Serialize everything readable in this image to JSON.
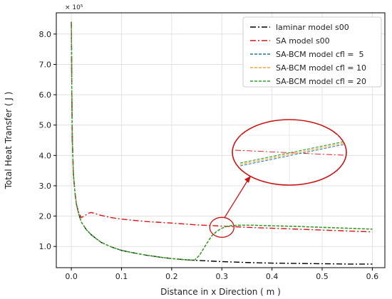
{
  "chart_data": {
    "type": "line",
    "xlabel": "Distance in x Direction ( m )",
    "ylabel": "Total Heat Transfer ( J )",
    "y_scale_label": "× 10⁵",
    "xlim": [
      -0.03,
      0.625
    ],
    "ylim": [
      0.3,
      8.7
    ],
    "xticks": [
      0.0,
      0.1,
      0.2,
      0.3,
      0.4,
      0.5,
      0.6
    ],
    "xtick_labels": [
      "0.0",
      "0.1",
      "0.2",
      "0.3",
      "0.4",
      "0.5",
      "0.6"
    ],
    "yticks": [
      1.0,
      2.0,
      3.0,
      4.0,
      5.0,
      6.0,
      7.0,
      8.0
    ],
    "ytick_labels": [
      "1.0",
      "2.0",
      "3.0",
      "4.0",
      "5.0",
      "6.0",
      "7.0",
      "8.0"
    ],
    "grid": true,
    "legend_position": "top-right",
    "series": [
      {
        "name": "laminar model s00",
        "color": "#000000",
        "dash": "dashdot",
        "x": [
          0.0,
          0.0005,
          0.001,
          0.002,
          0.004,
          0.007,
          0.01,
          0.015,
          0.02,
          0.03,
          0.04,
          0.05,
          0.06,
          0.08,
          0.1,
          0.12,
          0.15,
          0.18,
          0.2,
          0.22,
          0.25,
          0.3,
          0.35,
          0.4,
          0.45,
          0.5,
          0.55,
          0.6
        ],
        "y": [
          8.4,
          7.2,
          6.0,
          4.5,
          3.4,
          2.8,
          2.4,
          2.05,
          1.8,
          1.55,
          1.38,
          1.25,
          1.13,
          0.98,
          0.87,
          0.8,
          0.71,
          0.64,
          0.6,
          0.57,
          0.54,
          0.5,
          0.47,
          0.45,
          0.44,
          0.43,
          0.42,
          0.42
        ]
      },
      {
        "name": "SA model s00",
        "color": "#dd1111",
        "dash": "dashdot",
        "x": [
          0.0,
          0.0005,
          0.001,
          0.002,
          0.004,
          0.007,
          0.01,
          0.015,
          0.02,
          0.025,
          0.03,
          0.035,
          0.04,
          0.05,
          0.06,
          0.08,
          0.1,
          0.15,
          0.2,
          0.25,
          0.3,
          0.35,
          0.4,
          0.45,
          0.5,
          0.55,
          0.6
        ],
        "y": [
          8.4,
          7.2,
          6.0,
          4.5,
          3.4,
          2.8,
          2.4,
          2.1,
          1.95,
          2.0,
          2.05,
          2.1,
          2.12,
          2.07,
          2.02,
          1.95,
          1.9,
          1.82,
          1.77,
          1.71,
          1.67,
          1.63,
          1.6,
          1.57,
          1.54,
          1.51,
          1.48
        ]
      },
      {
        "name": "SA-BCM model cfl =  5",
        "color": "#1f77b4",
        "dash": "dashed",
        "x": [
          0.0,
          0.0005,
          0.001,
          0.002,
          0.004,
          0.007,
          0.01,
          0.015,
          0.02,
          0.03,
          0.04,
          0.05,
          0.06,
          0.08,
          0.1,
          0.12,
          0.15,
          0.18,
          0.2,
          0.22,
          0.245,
          0.255,
          0.27,
          0.28,
          0.29,
          0.3,
          0.31,
          0.32,
          0.34,
          0.36,
          0.4,
          0.45,
          0.5,
          0.55,
          0.6
        ],
        "y": [
          8.4,
          7.2,
          6.0,
          4.5,
          3.4,
          2.8,
          2.4,
          2.05,
          1.8,
          1.55,
          1.38,
          1.25,
          1.13,
          0.98,
          0.87,
          0.8,
          0.71,
          0.64,
          0.6,
          0.57,
          0.54,
          0.7,
          1.1,
          1.35,
          1.5,
          1.6,
          1.66,
          1.69,
          1.7,
          1.7,
          1.68,
          1.66,
          1.63,
          1.6,
          1.57
        ]
      },
      {
        "name": "SA-BCM model cfl = 10",
        "color": "#ff9f2e",
        "dash": "dashed",
        "x": [
          0.0,
          0.0005,
          0.001,
          0.002,
          0.004,
          0.007,
          0.01,
          0.015,
          0.02,
          0.03,
          0.04,
          0.05,
          0.06,
          0.08,
          0.1,
          0.12,
          0.15,
          0.18,
          0.2,
          0.22,
          0.245,
          0.255,
          0.27,
          0.28,
          0.29,
          0.3,
          0.31,
          0.32,
          0.34,
          0.36,
          0.4,
          0.45,
          0.5,
          0.55,
          0.6
        ],
        "y": [
          8.4,
          7.2,
          6.0,
          4.5,
          3.4,
          2.8,
          2.4,
          2.05,
          1.8,
          1.55,
          1.38,
          1.25,
          1.13,
          0.98,
          0.87,
          0.8,
          0.71,
          0.64,
          0.6,
          0.57,
          0.54,
          0.7,
          1.1,
          1.35,
          1.5,
          1.6,
          1.66,
          1.69,
          1.7,
          1.7,
          1.68,
          1.66,
          1.63,
          1.6,
          1.57
        ]
      },
      {
        "name": "SA-BCM model cfl = 20",
        "color": "#2ca02c",
        "dash": "dashed",
        "x": [
          0.0,
          0.0005,
          0.001,
          0.002,
          0.004,
          0.007,
          0.01,
          0.015,
          0.02,
          0.03,
          0.04,
          0.05,
          0.06,
          0.08,
          0.1,
          0.12,
          0.15,
          0.18,
          0.2,
          0.22,
          0.245,
          0.255,
          0.27,
          0.28,
          0.29,
          0.3,
          0.31,
          0.32,
          0.34,
          0.36,
          0.4,
          0.45,
          0.5,
          0.55,
          0.6
        ],
        "y": [
          8.4,
          7.2,
          6.0,
          4.5,
          3.4,
          2.8,
          2.4,
          2.05,
          1.8,
          1.55,
          1.38,
          1.25,
          1.13,
          0.98,
          0.87,
          0.8,
          0.71,
          0.64,
          0.6,
          0.57,
          0.54,
          0.7,
          1.1,
          1.35,
          1.5,
          1.6,
          1.66,
          1.69,
          1.7,
          1.7,
          1.68,
          1.66,
          1.63,
          1.6,
          1.57
        ]
      }
    ],
    "annotation": {
      "type": "zoom-inset",
      "target_x": 0.3,
      "target_y": 1.63,
      "color": "#cc1111"
    }
  }
}
